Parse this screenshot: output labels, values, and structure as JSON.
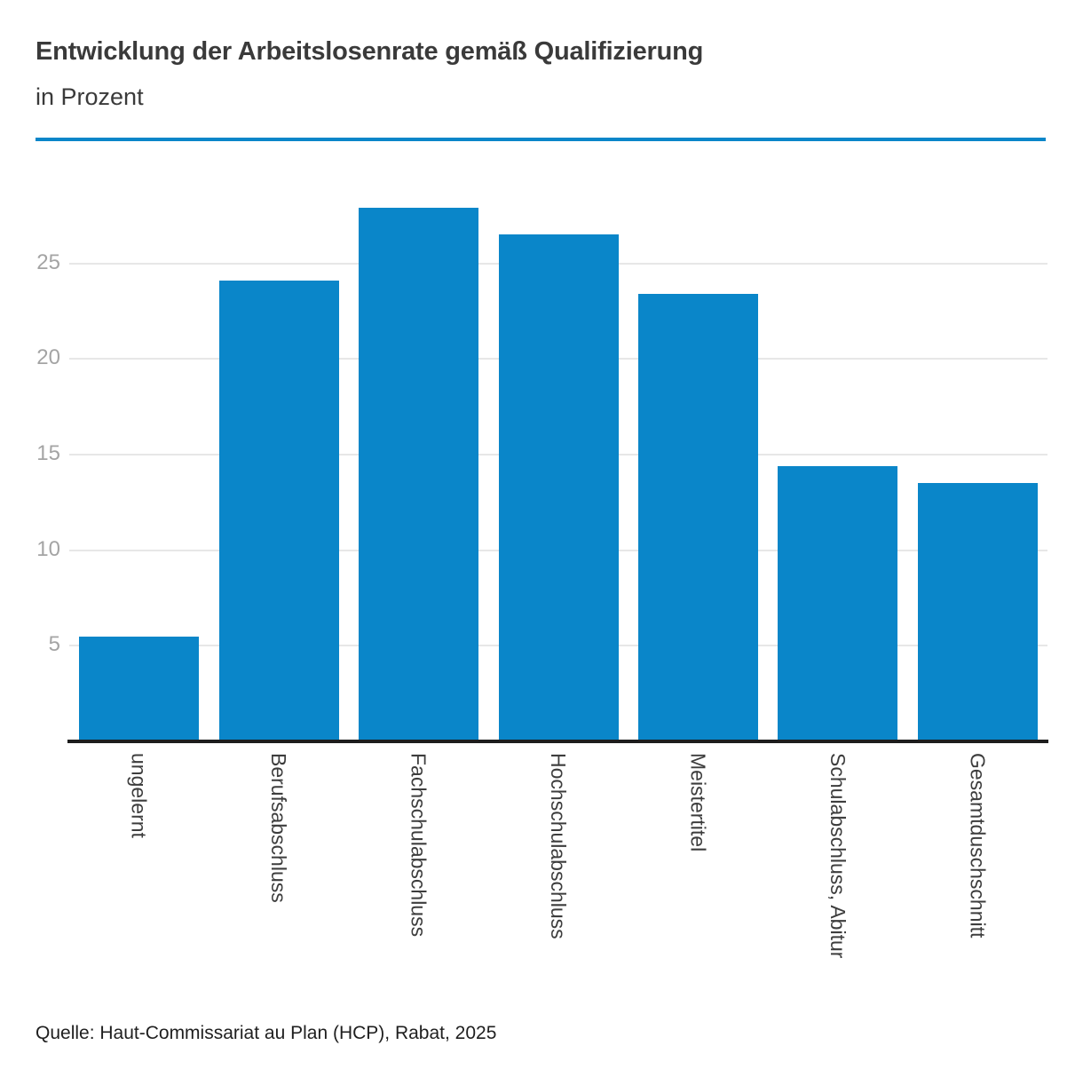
{
  "header": {
    "title": "Entwicklung der Arbeitslosenrate gemäß Qualifizierung",
    "subtitle": "in Prozent"
  },
  "chart_data": {
    "type": "bar",
    "title": "Entwicklung der Arbeitslosenrate gemäß Qualifizierung",
    "subtitle": "in Prozent",
    "categories": [
      "ungelernt",
      "Berufsabschluss",
      "Fachschulabschluss",
      "Hochschulabschluss",
      "Meistertitel",
      "Schulabschluss, Abitur",
      "Gesamtduschschnitt"
    ],
    "values": [
      5.5,
      24.1,
      27.9,
      26.5,
      23.4,
      14.4,
      13.5
    ],
    "xlabel": "",
    "ylabel": "",
    "ylim": [
      0,
      29.5
    ],
    "yticks": [
      5,
      10,
      15,
      20,
      25
    ],
    "grid": true,
    "legend": false,
    "x_label_rotation": "vertical"
  },
  "source": {
    "text": "Quelle: Haut-Commissariat au Plan (HCP), Rabat, 2025"
  },
  "colors": {
    "background": "#ffffff",
    "accent": "#0a86c9",
    "bar": "#0a86c9",
    "grid": "#e7e7e7",
    "axis": "#1d1d1d",
    "tick_label": "#a4a4a4",
    "title": "#3a3a3a",
    "label": "#3d3d3d",
    "source": "#1f1f1f"
  }
}
